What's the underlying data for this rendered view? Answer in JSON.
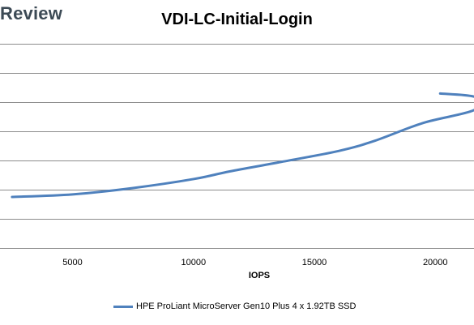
{
  "watermark": {
    "text": "Review"
  },
  "chart_data": {
    "type": "line",
    "title": "VDI-LC-Initial-Login",
    "xlabel": "IOPS",
    "ylabel": "",
    "x_ticks": [
      5000,
      10000,
      15000,
      20000
    ],
    "xlim": [
      2000,
      21600
    ],
    "ylim": [
      0,
      8
    ],
    "grid": true,
    "legend_position": "bottom",
    "series": [
      {
        "name": "HPE ProLiant MicroServer Gen10 Plus 4 x 1.92TB SSD",
        "color": "#4f81bd",
        "points": [
          {
            "x": 2500,
            "y": 2.0
          },
          {
            "x": 5000,
            "y": 2.1
          },
          {
            "x": 7500,
            "y": 2.35
          },
          {
            "x": 10000,
            "y": 2.7
          },
          {
            "x": 11500,
            "y": 3.0
          },
          {
            "x": 13500,
            "y": 3.35
          },
          {
            "x": 16000,
            "y": 3.8
          },
          {
            "x": 17500,
            "y": 4.2
          },
          {
            "x": 19500,
            "y": 4.9
          },
          {
            "x": 21600,
            "y": 5.4
          },
          {
            "x": 21700,
            "y": 5.9
          },
          {
            "x": 20200,
            "y": 6.05
          }
        ]
      }
    ]
  }
}
